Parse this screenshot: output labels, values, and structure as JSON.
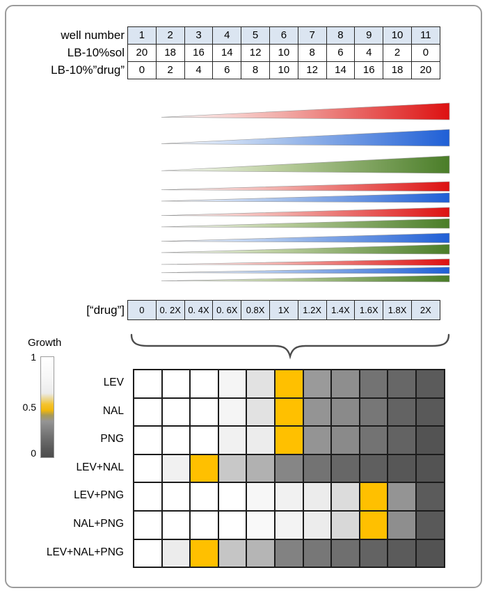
{
  "dilution_table": {
    "rows": [
      {
        "label": "well number",
        "highlight": true,
        "cells": [
          "1",
          "2",
          "3",
          "4",
          "5",
          "6",
          "7",
          "8",
          "9",
          "10",
          "11"
        ]
      },
      {
        "label": "LB-10%sol",
        "highlight": false,
        "cells": [
          "20",
          "18",
          "16",
          "14",
          "12",
          "10",
          "8",
          "6",
          "4",
          "2",
          "0"
        ]
      },
      {
        "label": "LB-10%”drug”",
        "highlight": false,
        "cells": [
          "0",
          "2",
          "4",
          "6",
          "8",
          "10",
          "12",
          "14",
          "16",
          "18",
          "20"
        ]
      }
    ]
  },
  "gradient_wedges": [
    {
      "name": "lev-gradient-wedge",
      "colors": [
        "red"
      ]
    },
    {
      "name": "nal-gradient-wedge",
      "colors": [
        "blue"
      ]
    },
    {
      "name": "png-gradient-wedge",
      "colors": [
        "green"
      ]
    },
    {
      "name": "lev-nal-gradient-wedge",
      "colors": [
        "red",
        "blue"
      ]
    },
    {
      "name": "lev-png-gradient-wedge",
      "colors": [
        "red",
        "green"
      ]
    },
    {
      "name": "nal-png-gradient-wedge",
      "colors": [
        "blue",
        "green"
      ]
    },
    {
      "name": "lev-nal-png-gradient-wedge",
      "colors": [
        "red",
        "blue",
        "green"
      ]
    }
  ],
  "drug_concentration_row": {
    "label": "[“drug”]",
    "cells": [
      "0",
      "0. 2X",
      "0. 4X",
      "0. 6X",
      "0.8X",
      "1X",
      "1.2X",
      "1.4X",
      "1.6X",
      "1.8X",
      "2X"
    ]
  },
  "growth_legend": {
    "title": "Growth",
    "ticks": [
      "1",
      "0.5",
      "0"
    ]
  },
  "chart_data": {
    "type": "heatmap",
    "x_labels": [
      "0",
      "0. 2X",
      "0. 4X",
      "0. 6X",
      "0.8X",
      "1X",
      "1.2X",
      "1.4X",
      "1.6X",
      "1.8X",
      "2X"
    ],
    "value_scale": {
      "min": 0,
      "max": 1,
      "mic_value": 0.5,
      "colormap": "white(1) to dark gray(0), gold marks 0.5"
    },
    "rows": [
      {
        "label": "LEV",
        "mic_col": 5,
        "values": [
          1,
          1,
          1,
          0.95,
          0.85,
          0.5,
          0.48,
          0.42,
          0.28,
          0.22,
          0.16
        ]
      },
      {
        "label": "NAL",
        "mic_col": 5,
        "values": [
          1,
          1,
          1,
          0.95,
          0.85,
          0.5,
          0.45,
          0.4,
          0.3,
          0.2,
          0.15
        ]
      },
      {
        "label": "PNG",
        "mic_col": 5,
        "values": [
          1,
          1,
          1,
          0.93,
          0.9,
          0.5,
          0.45,
          0.4,
          0.28,
          0.2,
          0.12
        ]
      },
      {
        "label": "LEV+NAL",
        "mic_col": 2,
        "values": [
          1,
          0.93,
          0.5,
          0.72,
          0.6,
          0.38,
          0.28,
          0.22,
          0.18,
          0.14,
          0.12
        ]
      },
      {
        "label": "LEV+PNG",
        "mic_col": 8,
        "values": [
          1,
          1,
          1,
          1,
          0.96,
          0.93,
          0.9,
          0.82,
          0.5,
          0.45,
          0.16
        ]
      },
      {
        "label": "NAL+PNG",
        "mic_col": 8,
        "values": [
          1,
          1,
          1,
          1,
          0.97,
          0.94,
          0.9,
          0.8,
          0.5,
          0.42,
          0.15
        ]
      },
      {
        "label": "LEV+NAL+PNG",
        "mic_col": 2,
        "values": [
          1,
          0.9,
          0.5,
          0.7,
          0.62,
          0.36,
          0.3,
          0.26,
          0.2,
          0.16,
          0.12
        ]
      }
    ]
  },
  "colors": {
    "table_fill": "#dbe5f1",
    "gold": "#ffc000",
    "red": "#dd1111",
    "red_light": "#f2b0ac",
    "blue": "#1f5fd6",
    "blue_light": "#aac4ec",
    "green": "#4a7d28",
    "green_light": "#bccf9f",
    "heat_dark": "#3c3c3c"
  }
}
